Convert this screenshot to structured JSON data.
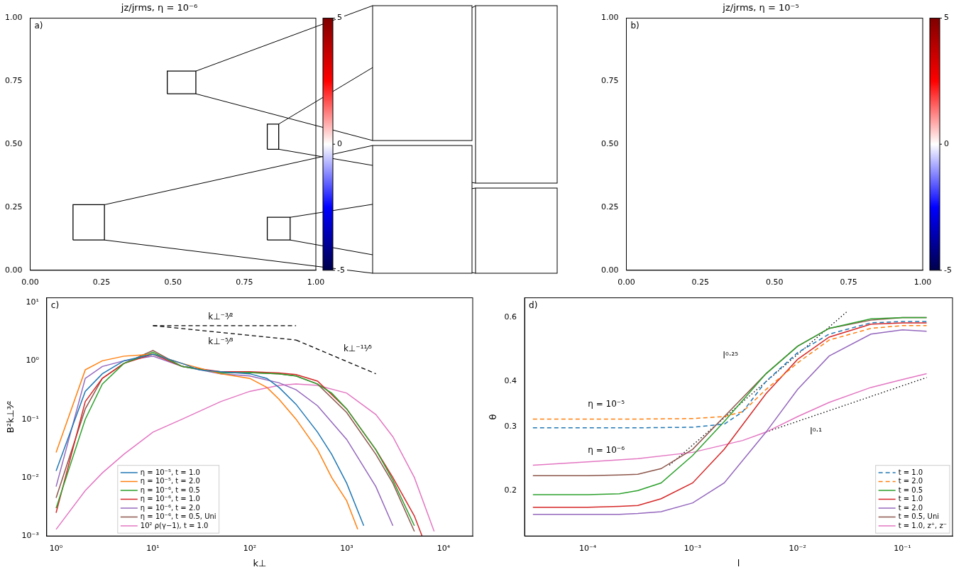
{
  "chart_data": [
    {
      "panel": "a)",
      "type": "image",
      "title": "jz/jrms, η = 10⁻⁶",
      "grid": false,
      "xlim": [
        0,
        1
      ],
      "ylim": [
        0,
        1
      ],
      "xticks": [
        {
          "value": 0,
          "label": "0.00"
        },
        {
          "value": 0.25,
          "label": "0.25"
        },
        {
          "value": 0.5,
          "label": "0.50"
        },
        {
          "value": 0.75,
          "label": "0.75"
        },
        {
          "value": 1,
          "label": "1.00"
        }
      ],
      "yticks": [
        {
          "value": 0,
          "label": "0.00"
        },
        {
          "value": 0.25,
          "label": "0.25"
        },
        {
          "value": 0.5,
          "label": "0.50"
        },
        {
          "value": 0.75,
          "label": "0.75"
        },
        {
          "value": 1,
          "label": "1.00"
        }
      ],
      "colorbar": {
        "range": [
          -5,
          5
        ],
        "ticks": [
          -5,
          0,
          5
        ],
        "colors": [
          "#00004c",
          "#0000ff",
          "#ffffff",
          "#ff0000",
          "#7f0000"
        ]
      },
      "zoom_boxes": [
        {
          "x": [
            0.48,
            0.58
          ],
          "y": [
            0.7,
            0.79
          ]
        },
        {
          "x": [
            0.83,
            0.87
          ],
          "y": [
            0.48,
            0.58
          ]
        },
        {
          "x": [
            0.15,
            0.26
          ],
          "y": [
            0.12,
            0.26
          ]
        },
        {
          "x": [
            0.83,
            0.91
          ],
          "y": [
            0.12,
            0.21
          ]
        }
      ]
    },
    {
      "panel": "b)",
      "type": "image",
      "title": "jz/jrms, η = 10⁻⁵",
      "grid": false,
      "xlim": [
        0,
        1
      ],
      "ylim": [
        0,
        1
      ],
      "xticks": [
        {
          "value": 0,
          "label": "0.00"
        },
        {
          "value": 0.25,
          "label": "0.25"
        },
        {
          "value": 0.5,
          "label": "0.50"
        },
        {
          "value": 0.75,
          "label": "0.75"
        },
        {
          "value": 1,
          "label": "1.00"
        }
      ],
      "yticks": [
        {
          "value": 0,
          "label": "0.00"
        },
        {
          "value": 0.25,
          "label": "0.25"
        },
        {
          "value": 0.5,
          "label": "0.50"
        },
        {
          "value": 0.75,
          "label": "0.75"
        },
        {
          "value": 1,
          "label": "1.00"
        }
      ],
      "colorbar": {
        "range": [
          -5,
          5
        ],
        "ticks": [
          -5,
          0,
          5
        ],
        "colors": [
          "#00004c",
          "#0000ff",
          "#ffffff",
          "#ff0000",
          "#7f0000"
        ]
      }
    },
    {
      "panel": "c)",
      "type": "line",
      "x_label": "k⊥",
      "y_label": "B²k⊥³⁄²",
      "log": true,
      "grid": false,
      "legend": "lower left",
      "xlim": [
        0.8,
        20000
      ],
      "ylim": [
        0.001,
        12
      ],
      "xticks": [
        {
          "value": 1,
          "label": "10⁰"
        },
        {
          "value": 10,
          "label": "10¹"
        },
        {
          "value": 100,
          "label": "10²"
        },
        {
          "value": 1000,
          "label": "10³"
        },
        {
          "value": 10000,
          "label": "10⁴"
        }
      ],
      "yticks": [
        {
          "value": 0.001,
          "label": "10⁻³"
        },
        {
          "value": 0.01,
          "label": "10⁻²"
        },
        {
          "value": 0.1,
          "label": "10⁻¹"
        },
        {
          "value": 1,
          "label": "10⁰"
        },
        {
          "value": 10,
          "label": "10¹"
        }
      ],
      "series": [
        {
          "name": "η = 10⁻⁵, t = 1.0",
          "color": "#1f77b4",
          "line_style": "solid",
          "x": [
            1,
            2,
            3,
            5,
            10,
            20,
            30,
            50,
            100,
            150,
            200,
            300,
            500,
            700,
            1000,
            1500
          ],
          "values": [
            0.013,
            0.3,
            0.6,
            1.0,
            1.3,
            0.9,
            0.7,
            0.65,
            0.6,
            0.5,
            0.35,
            0.18,
            0.06,
            0.025,
            0.008,
            0.0015
          ]
        },
        {
          "name": "η = 10⁻⁵, t = 2.0",
          "color": "#ff7f0e",
          "line_style": "solid",
          "x": [
            1,
            2,
            3,
            5,
            10,
            20,
            50,
            100,
            150,
            200,
            300,
            500,
            700,
            1000,
            1300
          ],
          "values": [
            0.027,
            0.7,
            1.0,
            1.2,
            1.3,
            0.9,
            0.6,
            0.5,
            0.35,
            0.22,
            0.1,
            0.03,
            0.01,
            0.004,
            0.0013
          ]
        },
        {
          "name": "η = 10⁻⁶, t = 0.5",
          "color": "#2ca02c",
          "line_style": "solid",
          "x": [
            1,
            2,
            3,
            5,
            10,
            20,
            50,
            100,
            200,
            300,
            500,
            700,
            1000,
            2000,
            3000,
            5000
          ],
          "values": [
            0.003,
            0.1,
            0.4,
            0.9,
            1.4,
            0.8,
            0.62,
            0.63,
            0.6,
            0.55,
            0.4,
            0.28,
            0.15,
            0.03,
            0.009,
            0.0015
          ]
        },
        {
          "name": "η = 10⁻⁶, t = 1.0",
          "color": "#d62728",
          "line_style": "solid",
          "x": [
            1,
            2,
            3,
            5,
            10,
            20,
            50,
            100,
            200,
            300,
            500,
            1000,
            2000,
            3000,
            5000,
            6000
          ],
          "values": [
            0.0025,
            0.2,
            0.5,
            0.9,
            1.3,
            0.8,
            0.65,
            0.65,
            0.62,
            0.58,
            0.45,
            0.15,
            0.03,
            0.01,
            0.0022,
            0.001
          ]
        },
        {
          "name": "η = 10⁻⁶, t = 2.0",
          "color": "#9467bd",
          "line_style": "solid",
          "x": [
            1,
            2,
            3,
            5,
            10,
            20,
            50,
            100,
            200,
            300,
            500,
            1000,
            2000,
            3000
          ],
          "values": [
            0.007,
            0.5,
            0.8,
            1.0,
            1.2,
            0.8,
            0.6,
            0.55,
            0.42,
            0.32,
            0.17,
            0.045,
            0.007,
            0.0015
          ]
        },
        {
          "name": "η = 10⁻⁶, t = 0.5, Uni",
          "color": "#8c564b",
          "line_style": "solid",
          "x": [
            1,
            2,
            3,
            5,
            10,
            20,
            50,
            100,
            200,
            300,
            500,
            1000,
            2000,
            3000,
            5000
          ],
          "values": [
            0.0045,
            0.15,
            0.5,
            0.9,
            1.5,
            0.8,
            0.62,
            0.63,
            0.6,
            0.55,
            0.4,
            0.13,
            0.025,
            0.008,
            0.0012
          ]
        },
        {
          "name": "10² ρ(γ−1), t = 1.0",
          "color": "#e377c2",
          "line_style": "solid",
          "x": [
            1,
            2,
            3,
            5,
            10,
            20,
            50,
            100,
            200,
            300,
            500,
            1000,
            2000,
            3000,
            5000,
            8000
          ],
          "values": [
            0.0013,
            0.006,
            0.012,
            0.025,
            0.06,
            0.1,
            0.2,
            0.3,
            0.38,
            0.4,
            0.38,
            0.28,
            0.12,
            0.05,
            0.01,
            0.0012
          ]
        }
      ],
      "reference_lines": [
        {
          "x": [
            10,
            300
          ],
          "y": [
            4,
            4
          ],
          "line_style": "dashed",
          "color": "#000000"
        },
        {
          "x": [
            10,
            300
          ],
          "y": [
            4,
            2.27
          ],
          "line_style": "dashed",
          "color": "#000000"
        },
        {
          "x": [
            300,
            2000
          ],
          "y": [
            2.27,
            0.6
          ],
          "line_style": "dashed",
          "color": "#000000"
        }
      ],
      "annotations": [
        {
          "text": "k⊥⁻³⁄²",
          "x": 50,
          "y": 5.6
        },
        {
          "text": "k⊥⁻⁵⁄³",
          "x": 50,
          "y": 2.1
        },
        {
          "text": "k⊥⁻¹¹⁄⁵",
          "x": 1300,
          "y": 1.6
        }
      ]
    },
    {
      "panel": "d)",
      "type": "line",
      "x_label": "l",
      "y_label": "θ",
      "log": true,
      "grid": false,
      "legend": "lower right",
      "xlim": [
        2.5e-05,
        0.3
      ],
      "ylim": [
        0.15,
        0.68
      ],
      "xticks": [
        {
          "value": 0.0001,
          "label": "10⁻⁴"
        },
        {
          "value": 0.001,
          "label": "10⁻³"
        },
        {
          "value": 0.01,
          "label": "10⁻²"
        },
        {
          "value": 0.1,
          "label": "10⁻¹"
        }
      ],
      "yticks": [
        0.2,
        0.3,
        0.4,
        0.6
      ],
      "series": [
        {
          "name": "t = 1.0",
          "color": "#1f77b4",
          "line_style": "dashed",
          "x": [
            3e-05,
            0.0001,
            0.0003,
            0.001,
            0.002,
            0.003,
            0.005,
            0.01,
            0.02,
            0.05,
            0.1,
            0.17
          ],
          "values": [
            0.298,
            0.298,
            0.298,
            0.299,
            0.305,
            0.33,
            0.4,
            0.48,
            0.54,
            0.58,
            0.585,
            0.585
          ]
        },
        {
          "name": "t = 2.0",
          "color": "#ff7f0e",
          "line_style": "dashed",
          "x": [
            3e-05,
            0.0001,
            0.0003,
            0.001,
            0.002,
            0.003,
            0.005,
            0.01,
            0.02,
            0.05,
            0.1,
            0.17
          ],
          "values": [
            0.315,
            0.315,
            0.315,
            0.316,
            0.32,
            0.33,
            0.38,
            0.45,
            0.52,
            0.56,
            0.57,
            0.57
          ]
        },
        {
          "name": "t = 0.5",
          "color": "#2ca02c",
          "line_style": "solid",
          "x": [
            3e-05,
            0.0001,
            0.0002,
            0.0003,
            0.0005,
            0.001,
            0.002,
            0.005,
            0.01,
            0.02,
            0.05,
            0.1,
            0.17
          ],
          "values": [
            0.195,
            0.195,
            0.196,
            0.2,
            0.21,
            0.25,
            0.31,
            0.42,
            0.5,
            0.56,
            0.595,
            0.6,
            0.6
          ]
        },
        {
          "name": "t = 1.0",
          "color": "#d62728",
          "line_style": "solid",
          "x": [
            3e-05,
            0.0001,
            0.0002,
            0.0003,
            0.0005,
            0.001,
            0.002,
            0.005,
            0.01,
            0.02,
            0.05,
            0.1,
            0.17
          ],
          "values": [
            0.18,
            0.18,
            0.181,
            0.182,
            0.19,
            0.21,
            0.26,
            0.37,
            0.46,
            0.53,
            0.575,
            0.58,
            0.58
          ]
        },
        {
          "name": "t = 2.0",
          "color": "#9467bd",
          "line_style": "solid",
          "x": [
            3e-05,
            0.0001,
            0.0002,
            0.0003,
            0.0005,
            0.001,
            0.002,
            0.005,
            0.01,
            0.02,
            0.05,
            0.1,
            0.17
          ],
          "values": [
            0.172,
            0.172,
            0.172,
            0.173,
            0.175,
            0.185,
            0.21,
            0.29,
            0.38,
            0.47,
            0.54,
            0.555,
            0.55
          ]
        },
        {
          "name": "t = 0.5, Uni",
          "color": "#8c564b",
          "line_style": "solid",
          "x": [
            3e-05,
            0.0001,
            0.0002,
            0.0003,
            0.0005,
            0.001,
            0.002,
            0.005,
            0.01,
            0.02,
            0.05,
            0.1,
            0.17
          ],
          "values": [
            0.22,
            0.22,
            0.221,
            0.222,
            0.23,
            0.26,
            0.32,
            0.42,
            0.5,
            0.56,
            0.59,
            0.6,
            0.6
          ]
        },
        {
          "name": "t = 1.0, z⁺, z⁻",
          "color": "#e377c2",
          "line_style": "solid",
          "x": [
            3e-05,
            0.0001,
            0.0003,
            0.001,
            0.003,
            0.005,
            0.01,
            0.02,
            0.05,
            0.1,
            0.17
          ],
          "values": [
            0.235,
            0.24,
            0.245,
            0.255,
            0.275,
            0.29,
            0.32,
            0.35,
            0.385,
            0.405,
            0.42
          ]
        }
      ],
      "reference_lines": [
        {
          "x": [
            0.0006,
            0.03
          ],
          "y": [
            0.235,
            0.625
          ],
          "line_style": "dotted",
          "color": "#000000"
        },
        {
          "x": [
            0.005,
            0.17
          ],
          "y": [
            0.29,
            0.41
          ],
          "line_style": "dotted",
          "color": "#000000"
        }
      ],
      "annotations": [
        {
          "text": "η = 10⁻⁵",
          "x": 0.00015,
          "y": 0.345
        },
        {
          "text": "η = 10⁻⁶",
          "x": 0.00015,
          "y": 0.258
        },
        {
          "text": "l⁰·²⁵",
          "x": 0.0023,
          "y": 0.47
        },
        {
          "text": "l⁰·¹",
          "x": 0.015,
          "y": 0.29
        }
      ]
    }
  ]
}
